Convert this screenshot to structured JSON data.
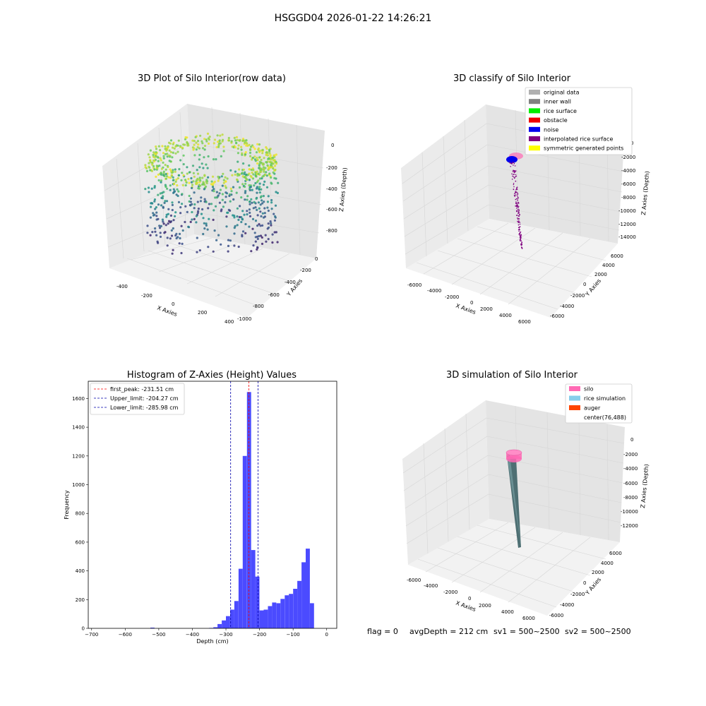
{
  "figure": {
    "title": "HSGGD04 2026-01-22 14:26:21",
    "footer": {
      "flag": "flag = 0",
      "avgDepth": "avgDepth = 212 cm",
      "sv1": "sv1 = 500~2500",
      "sv2": "sv2 = 500~2500"
    }
  },
  "colors": {
    "grid": "#d0d0d0",
    "hist_bar": "#4b4bff",
    "first_peak_line": "#ff0000",
    "limit_line": "#0000aa"
  },
  "chart_data": [
    {
      "type": "scatter",
      "subtype": "3d",
      "title": "3D Plot of Silo Interior(row data)",
      "xlabel": "X Axies",
      "ylabel": "Y Axies",
      "zlabel": "Z Axies (Depth)",
      "x_ticks": [
        "-400",
        "-200",
        "0",
        "200",
        "400"
      ],
      "y_ticks": [
        "0",
        "-200",
        "-400",
        "-600",
        "-800",
        "-1000"
      ],
      "z_ticks": [
        "0",
        "-200",
        "-400",
        "-600",
        "-800"
      ],
      "colormap": "viridis by depth",
      "description_points": "cylindrical point cloud of silo wall and rice surface, z from about -900 to 0"
    },
    {
      "type": "scatter",
      "subtype": "3d",
      "title": "3D classify of Silo Interior",
      "xlabel": "X Axies",
      "ylabel": "Y Axies",
      "zlabel": "Z Axies (Depth)",
      "x_ticks": [
        "-6000",
        "-4000",
        "-2000",
        "0",
        "2000",
        "4000",
        "6000"
      ],
      "y_ticks": [
        "6000",
        "4000",
        "2000",
        "0",
        "-2000",
        "-4000",
        "-6000"
      ],
      "z_ticks": [
        "0",
        "-2000",
        "-4000",
        "-6000",
        "-8000",
        "-10000",
        "-12000",
        "-14000"
      ],
      "legend": [
        {
          "label": "original data",
          "color": "#b0b0b0"
        },
        {
          "label": "inner wall",
          "color": "#808080"
        },
        {
          "label": "rice surface",
          "color": "#00ee00"
        },
        {
          "label": "obstacle",
          "color": "#ee0000"
        },
        {
          "label": "noise",
          "color": "#0000ee"
        },
        {
          "label": "interpolated rice surface",
          "color": "#800080"
        },
        {
          "label": "symmetric generated points",
          "color": "#ffff00"
        }
      ]
    },
    {
      "type": "bar",
      "subtype": "histogram",
      "title": "Histogram of Z-Axies (Height) Values",
      "xlabel": "Depth (cm)",
      "ylabel": "Frequency",
      "xlim": [
        -710,
        30
      ],
      "ylim": [
        0,
        1720
      ],
      "x_ticks": [
        -700,
        -600,
        -500,
        -400,
        -300,
        -200,
        -100,
        0
      ],
      "y_ticks": [
        0,
        200,
        400,
        600,
        800,
        1000,
        1200,
        1400,
        1600
      ],
      "bin_width": 12.5,
      "bins": [
        {
          "x": -525,
          "count": 5
        },
        {
          "x": -350,
          "count": 3
        },
        {
          "x": -337.5,
          "count": 8
        },
        {
          "x": -325,
          "count": 30
        },
        {
          "x": -312.5,
          "count": 55
        },
        {
          "x": -300,
          "count": 85
        },
        {
          "x": -287.5,
          "count": 130
        },
        {
          "x": -275,
          "count": 190
        },
        {
          "x": -262.5,
          "count": 415
        },
        {
          "x": -250,
          "count": 1200
        },
        {
          "x": -237.5,
          "count": 1645
        },
        {
          "x": -225,
          "count": 545
        },
        {
          "x": -212.5,
          "count": 360
        },
        {
          "x": -200,
          "count": 125
        },
        {
          "x": -187.5,
          "count": 130
        },
        {
          "x": -175,
          "count": 155
        },
        {
          "x": -162.5,
          "count": 180
        },
        {
          "x": -150,
          "count": 175
        },
        {
          "x": -137.5,
          "count": 205
        },
        {
          "x": -125,
          "count": 230
        },
        {
          "x": -112.5,
          "count": 240
        },
        {
          "x": -100,
          "count": 275
        },
        {
          "x": -87.5,
          "count": 330
        },
        {
          "x": -75,
          "count": 460
        },
        {
          "x": -62.5,
          "count": 555
        },
        {
          "x": -50,
          "count": 175
        }
      ],
      "vlines": [
        {
          "label": "first_peak: -231.51 cm",
          "x": -231.51,
          "color": "#ff0000"
        },
        {
          "label": "Upper_limit: -204.27 cm",
          "x": -204.27,
          "color": "#0000aa"
        },
        {
          "label": "Lower_limit: -285.98 cm",
          "x": -285.98,
          "color": "#0000aa"
        }
      ]
    },
    {
      "type": "area",
      "subtype": "3d-surface",
      "title": "3D simulation of Silo Interior",
      "xlabel": "X Axies",
      "ylabel": "Y Axies",
      "zlabel": "Z Axies (Depth)",
      "x_ticks": [
        "-6000",
        "-4000",
        "-2000",
        "0",
        "2000",
        "4000",
        "6000"
      ],
      "y_ticks": [
        "6000",
        "4000",
        "2000",
        "0",
        "-2000",
        "-4000",
        "-6000"
      ],
      "z_ticks": [
        "0",
        "-2000",
        "-4000",
        "-6000",
        "-8000",
        "-10000",
        "-12000"
      ],
      "legend": [
        {
          "label": "silo",
          "color": "#ff69b4"
        },
        {
          "label": "rice simulation",
          "color": "#87ceeb"
        },
        {
          "label": "auger",
          "color": "#ff4500"
        },
        {
          "label": "center(76,488)",
          "color": "#ffffff"
        }
      ]
    }
  ]
}
